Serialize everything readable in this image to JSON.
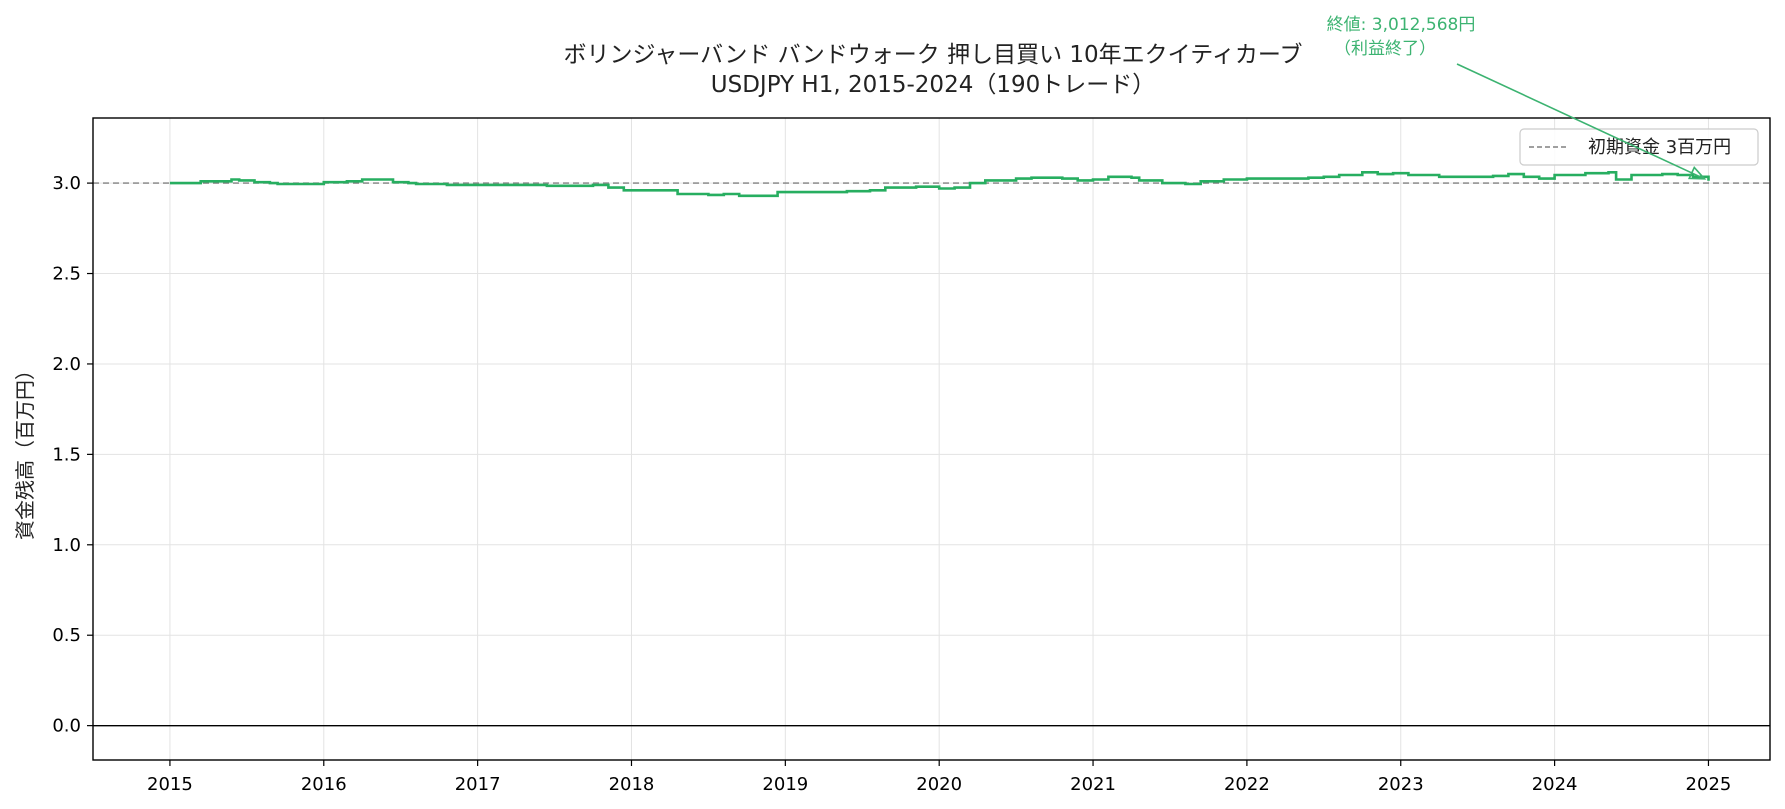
{
  "chart_data": {
    "type": "line",
    "title": "ボリンジャーバンド バンドウォーク 押し目買い 10年エクイティカーブ",
    "subtitle": "USDJPY H1, 2015-2024（190トレード）",
    "xlabel": "",
    "ylabel": "資金残高（百万円）",
    "xlim": [
      2014.5,
      2025.4
    ],
    "ylim": [
      -0.19,
      3.36
    ],
    "x_ticks": [
      2015,
      2016,
      2017,
      2018,
      2019,
      2020,
      2021,
      2022,
      2023,
      2024,
      2025
    ],
    "x_tick_labels": [
      "2015",
      "2016",
      "2017",
      "2018",
      "2019",
      "2020",
      "2021",
      "2022",
      "2023",
      "2024",
      "2025"
    ],
    "y_ticks": [
      0.0,
      0.5,
      1.0,
      1.5,
      2.0,
      2.5,
      3.0
    ],
    "y_tick_labels": [
      "0.0",
      "0.5",
      "1.0",
      "1.5",
      "2.0",
      "2.5",
      "3.0"
    ],
    "grid": true,
    "legend_position": "top-right",
    "colors": {
      "equity": "#27ae60",
      "baseline": "#808080",
      "zero_line": "#000000"
    },
    "baseline": {
      "name": "初期資金 3百万円",
      "value": 3.0
    },
    "zero_line": 0.0,
    "series": [
      {
        "step": true,
        "x": [
          2015.0,
          2015.2,
          2015.4,
          2015.45,
          2015.55,
          2015.65,
          2015.7,
          2016.0,
          2016.15,
          2016.25,
          2016.45,
          2016.55,
          2016.6,
          2016.8,
          2017.0,
          2017.3,
          2017.45,
          2017.6,
          2017.75,
          2017.85,
          2017.95,
          2018.3,
          2018.5,
          2018.6,
          2018.7,
          2018.8,
          2018.95,
          2019.2,
          2019.4,
          2019.55,
          2019.65,
          2019.85,
          2020.0,
          2020.1,
          2020.2,
          2020.3,
          2020.5,
          2020.6,
          2020.8,
          2020.9,
          2021.0,
          2021.1,
          2021.25,
          2021.3,
          2021.45,
          2021.6,
          2021.7,
          2021.85,
          2022.0,
          2022.2,
          2022.4,
          2022.5,
          2022.6,
          2022.75,
          2022.85,
          2022.95,
          2023.05,
          2023.25,
          2023.5,
          2023.6,
          2023.7,
          2023.8,
          2023.9,
          2024.0,
          2024.2,
          2024.35,
          2024.4,
          2024.5,
          2024.7,
          2024.8,
          2024.9,
          2025.0
        ],
        "y": [
          3.0,
          3.01,
          3.02,
          3.015,
          3.005,
          3.0,
          2.995,
          3.005,
          3.01,
          3.02,
          3.005,
          3.0,
          2.995,
          2.99,
          2.99,
          2.99,
          2.985,
          2.985,
          2.99,
          2.975,
          2.96,
          2.94,
          2.935,
          2.94,
          2.93,
          2.93,
          2.95,
          2.95,
          2.955,
          2.96,
          2.975,
          2.98,
          2.97,
          2.975,
          3.0,
          3.015,
          3.025,
          3.03,
          3.025,
          3.015,
          3.02,
          3.035,
          3.03,
          3.015,
          3.0,
          2.995,
          3.01,
          3.02,
          3.025,
          3.025,
          3.03,
          3.035,
          3.045,
          3.06,
          3.05,
          3.055,
          3.045,
          3.035,
          3.035,
          3.04,
          3.05,
          3.035,
          3.025,
          3.045,
          3.055,
          3.06,
          3.02,
          3.045,
          3.05,
          3.045,
          3.035,
          3.0126
        ]
      }
    ],
    "annotations": [
      {
        "text_lines": [
          "終値: 3,012,568円",
          "（利益終了）"
        ],
        "x": 2025.0,
        "y": 3.0126,
        "color": "#3cb371"
      }
    ]
  }
}
